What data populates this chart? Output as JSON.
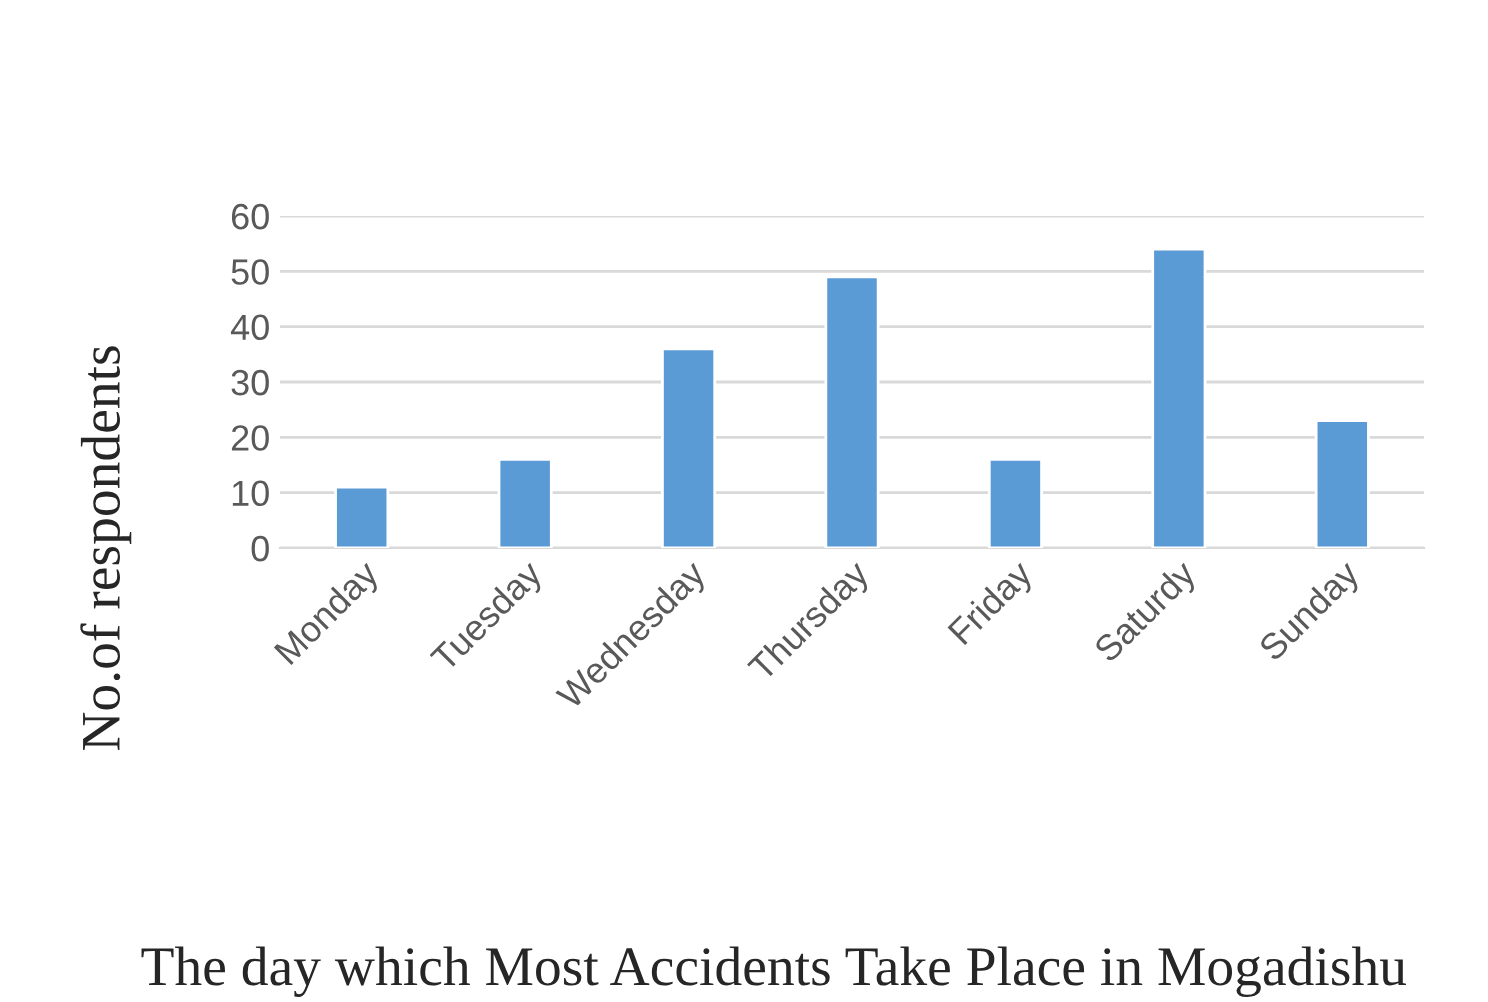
{
  "chart_data": {
    "type": "bar",
    "title": "The day which Most Accidents Take Place in Mogadishu",
    "ylabel": "No.of respondents",
    "categories": [
      "Monday",
      "Tuesday",
      "Wednesday",
      "Thursday",
      "Friday",
      "Saturdy",
      "Sunday"
    ],
    "values": [
      11,
      16,
      36,
      49,
      16,
      54,
      23
    ],
    "color": "#5b9bd5",
    "ylim": [
      0,
      60
    ],
    "yticks": [
      0,
      10,
      20,
      30,
      40,
      50,
      60
    ],
    "grid": "y",
    "legend": false
  }
}
